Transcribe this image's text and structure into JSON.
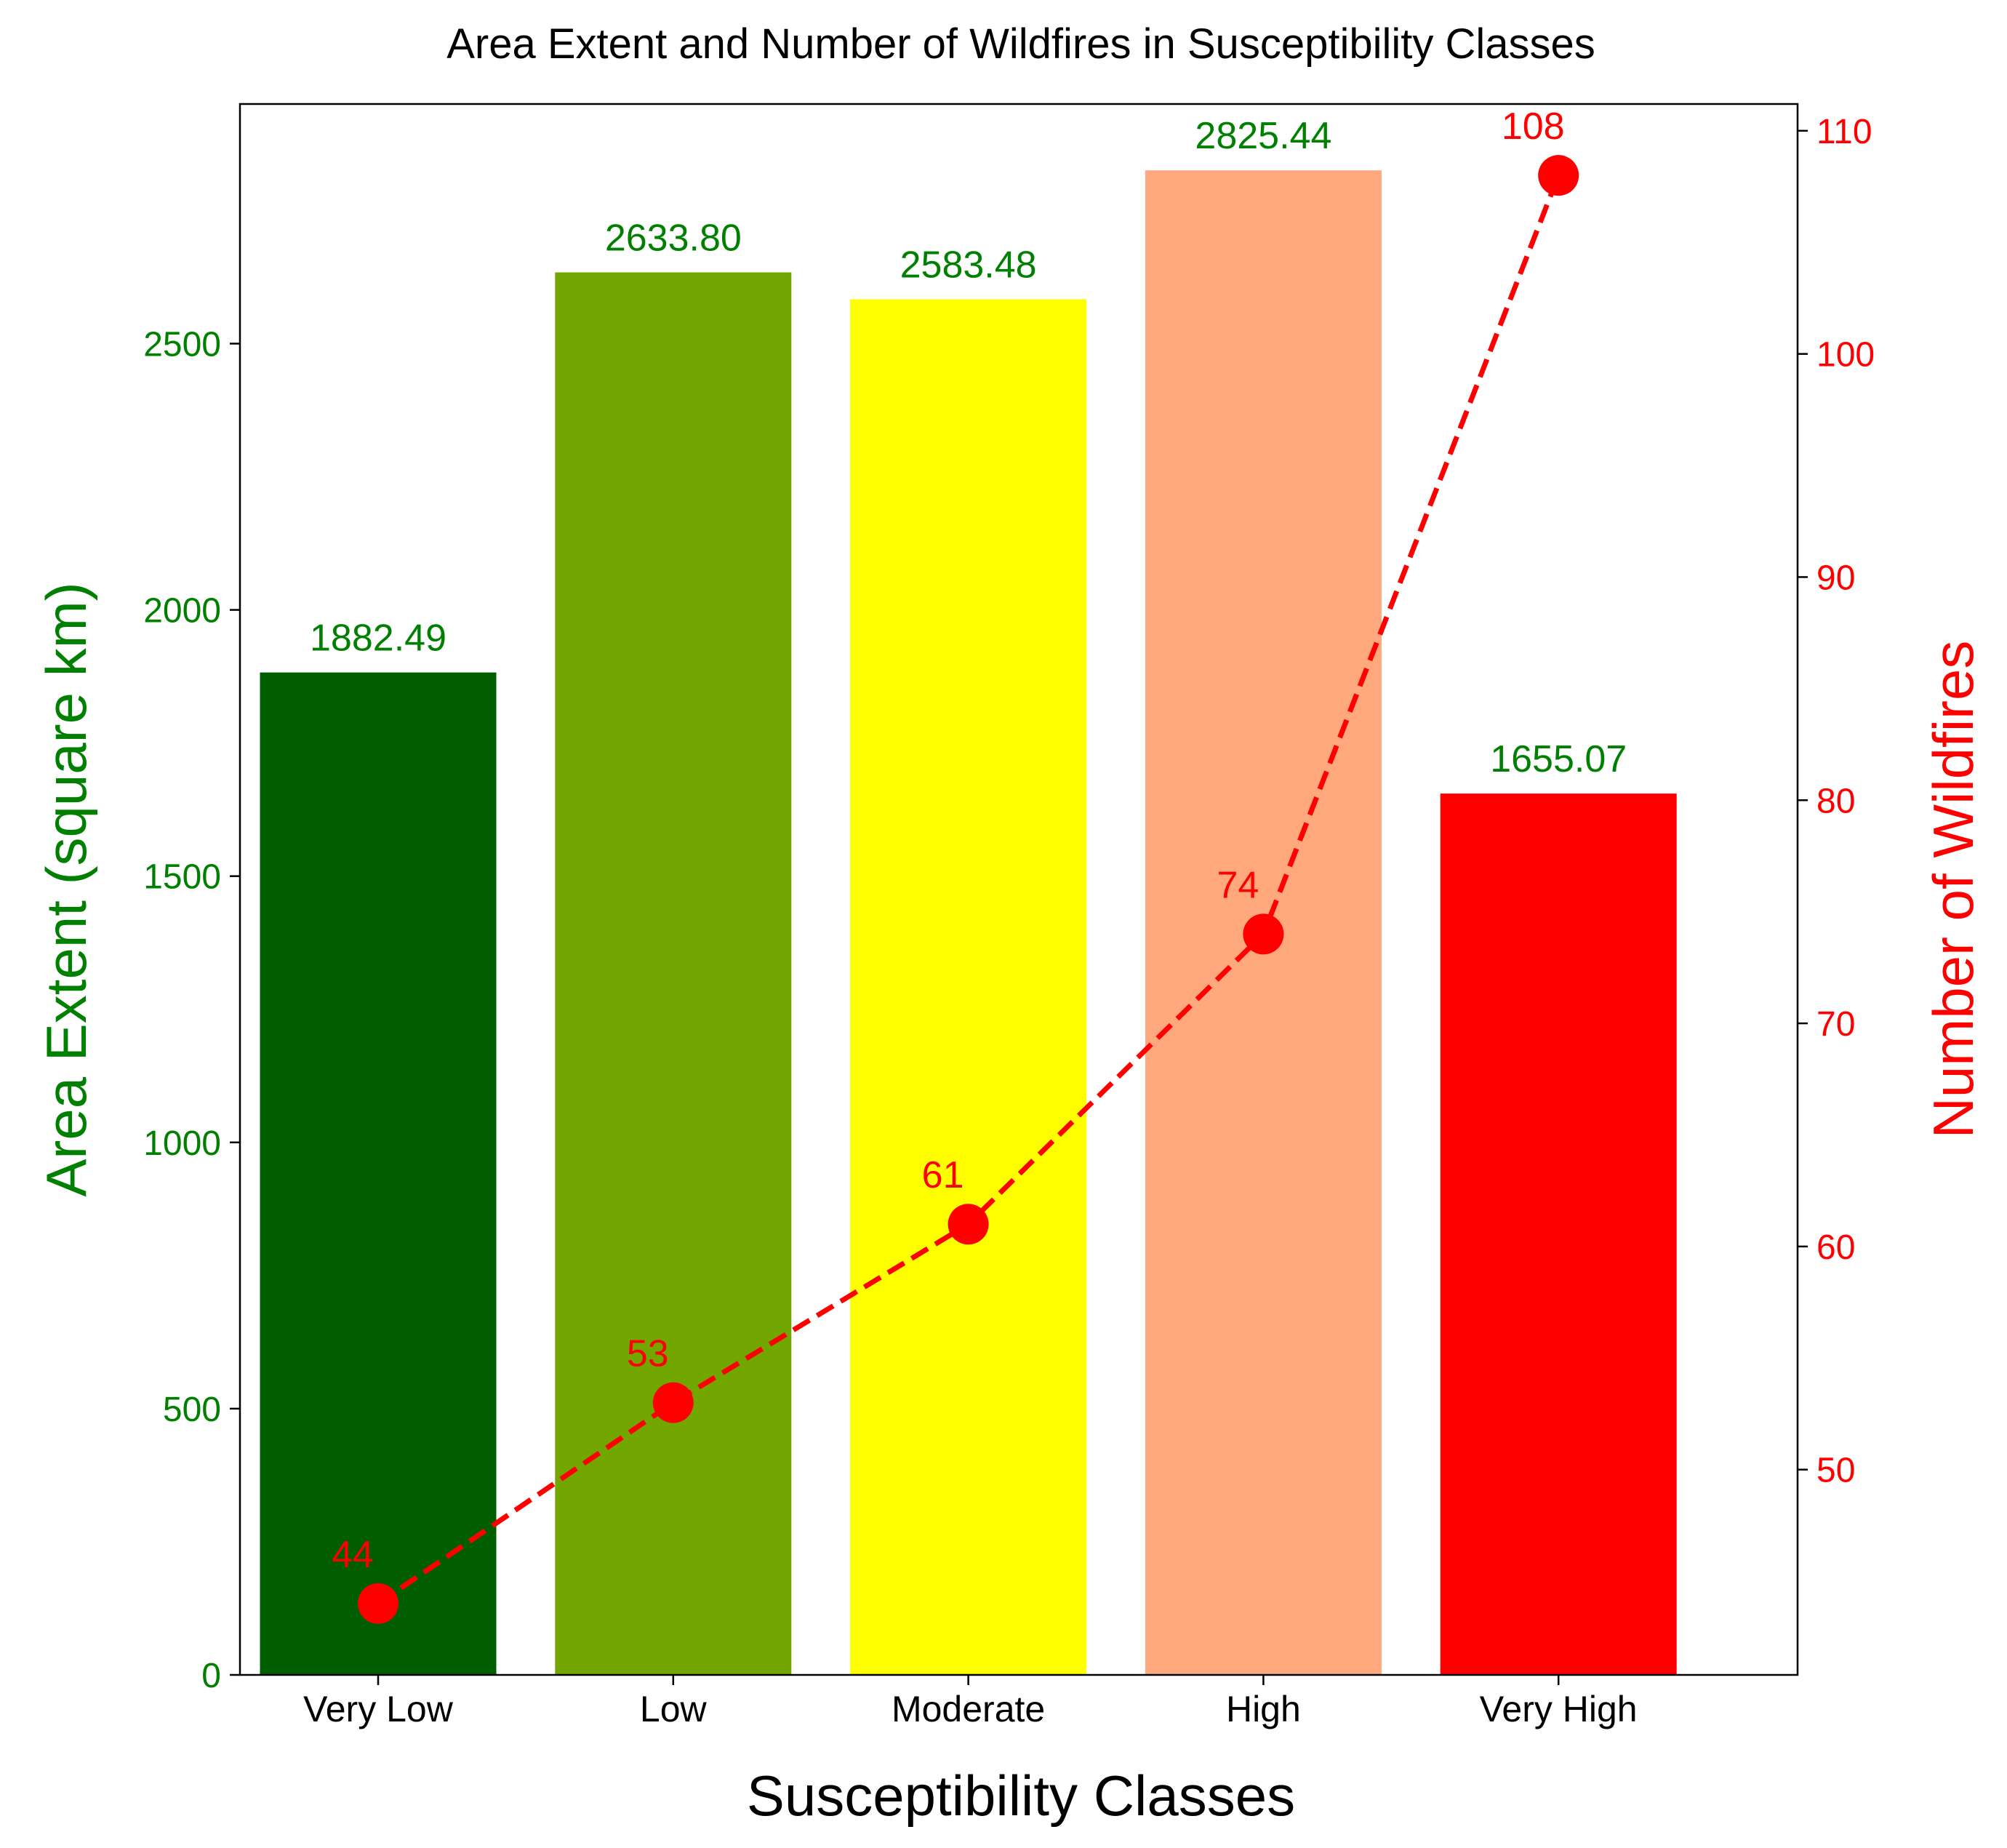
{
  "chart_data": {
    "type": "bar",
    "title": "Area Extent and Number of Wildfires in Susceptibility Classes",
    "xlabel": "Susceptibility Classes",
    "categories": [
      "Very Low",
      "Low",
      "Moderate",
      "High",
      "Very High"
    ],
    "bar_colors": [
      "#005e00",
      "#72a600",
      "#ffff00",
      "#ffa87e",
      "#ff0000"
    ],
    "left_axis": {
      "label": "Area Extent (square km)",
      "color": "#008000",
      "ylim": [
        0,
        2950
      ],
      "ticks": [
        0,
        500,
        1000,
        1500,
        2000,
        2500
      ]
    },
    "right_axis": {
      "label": "Number of Wildfires",
      "color": "#ff0000",
      "ylim": [
        40.8,
        111.2
      ],
      "ticks": [
        50,
        60,
        70,
        80,
        90,
        100,
        110
      ]
    },
    "series": [
      {
        "name": "Area Extent (square km)",
        "type": "bar",
        "axis": "left",
        "values": [
          1882.49,
          2633.8,
          2583.48,
          2825.44,
          1655.07
        ],
        "labels": [
          "1882.49",
          "2633.80",
          "2583.48",
          "2825.44",
          "1655.07"
        ]
      },
      {
        "name": "Number of Wildfires",
        "type": "line",
        "axis": "right",
        "line_style": "dashed",
        "marker": "circle",
        "color": "#ff0000",
        "values": [
          44,
          53,
          61,
          74,
          108
        ],
        "labels": [
          "44",
          "53",
          "61",
          "74",
          "108"
        ]
      }
    ],
    "grid": false
  }
}
